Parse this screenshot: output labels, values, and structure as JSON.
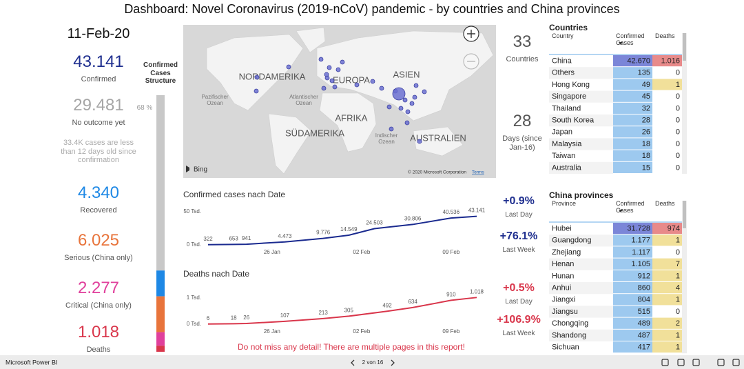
{
  "header": {
    "title": "Dashboard: Novel Coronavirus (2019-nCoV) pandemic - by countries and China provinces",
    "date": "11-Feb-20"
  },
  "kpis": [
    {
      "value": 43141,
      "value_label": "43.141",
      "label": "Confirmed",
      "color": "#1f2f8f"
    },
    {
      "value": 29481,
      "value_label": "29.481",
      "label": "No outcome yet",
      "color": "#a6a6a6"
    },
    {
      "value": 4340,
      "value_label": "4.340",
      "label": "Recovered",
      "color": "#1e88e5"
    },
    {
      "value": 6025,
      "value_label": "6.025",
      "label": "Serious (China only)",
      "color": "#e8743b"
    },
    {
      "value": 2277,
      "value_label": "2.277",
      "label": "Critical (China only)",
      "color": "#e0409c"
    },
    {
      "value": 1018,
      "value_label": "1.018",
      "label": "Deaths",
      "color": "#d9364b"
    }
  ],
  "note": "33.4K cases are less than 12 days old since confirmation",
  "structure": {
    "title": "Confirmed Cases Structure",
    "share_label": "68 %"
  },
  "map": {
    "regions": [
      "NORDAMERIKA",
      "EUROPA",
      "ASIEN",
      "AFRIKA",
      "SÜDAMERIKA",
      "AUSTRALIEN"
    ],
    "oceans": [
      "Pazifischer Ozean",
      "Atlantischer Ozean",
      "Indischer Ozean"
    ],
    "provider": "Bing",
    "copyright": "© 2020 Microsoft Corporation",
    "terms": "Terms"
  },
  "stats": {
    "countries": {
      "value": "33",
      "label": "Countries"
    },
    "days": {
      "value": "28",
      "label": "Days (since Jan-16)"
    },
    "confirmed_growth": [
      {
        "value": "+0.9%",
        "label": "Last Day"
      },
      {
        "value": "+76.1%",
        "label": "Last Week"
      }
    ],
    "deaths_growth": [
      {
        "value": "+0.5%",
        "label": "Last Day"
      },
      {
        "value": "+106.9%",
        "label": "Last Week"
      }
    ]
  },
  "charts": [
    {
      "type": "line",
      "title": "Confirmed cases nach Date",
      "color": "#1a2a8f",
      "x": [
        "21 Jan",
        "23 Jan",
        "24 Jan",
        "27 Jan",
        "30 Jan",
        "01 Feb",
        "03 Feb",
        "06 Feb",
        "09 Feb",
        "11 Feb"
      ],
      "values": [
        322,
        653,
        941,
        4473,
        9776,
        14549,
        24503,
        30806,
        40536,
        43141
      ],
      "value_labels": [
        "322",
        "653",
        "941",
        "4.473",
        "9.776",
        "14.549",
        "24.503",
        "30.806",
        "40.536",
        "43.141"
      ],
      "ylim": [
        0,
        50000
      ],
      "yticks": [
        {
          "value": 0,
          "label": "0 Tsd."
        },
        {
          "value": 50000,
          "label": "50 Tsd."
        }
      ],
      "xticks": [
        "26 Jan",
        "02 Feb",
        "09 Feb"
      ]
    },
    {
      "type": "line",
      "title": "Deaths nach Date",
      "color": "#d9364b",
      "x": [
        "21 Jan",
        "23 Jan",
        "24 Jan",
        "27 Jan",
        "30 Jan",
        "01 Feb",
        "04 Feb",
        "06 Feb",
        "09 Feb",
        "11 Feb"
      ],
      "values": [
        6,
        18,
        26,
        107,
        213,
        305,
        492,
        634,
        910,
        1018
      ],
      "value_labels": [
        "6",
        "18",
        "26",
        "107",
        "213",
        "305",
        "492",
        "634",
        "910",
        "1.018"
      ],
      "ylim": [
        0,
        1000
      ],
      "yticks": [
        {
          "value": 0,
          "label": "0 Tsd."
        },
        {
          "value": 1000,
          "label": "1 Tsd."
        }
      ],
      "xticks": [
        "26 Jan",
        "02 Feb",
        "09 Feb"
      ]
    }
  ],
  "countries": {
    "title": "Countries",
    "columns": [
      "Country",
      "Confirmed Cases",
      "Deaths"
    ],
    "rows": [
      [
        "China",
        "42.670",
        "1.016"
      ],
      [
        "Others",
        "135",
        "0"
      ],
      [
        "Hong Kong",
        "49",
        "1"
      ],
      [
        "Singapore",
        "45",
        "0"
      ],
      [
        "Thailand",
        "32",
        "0"
      ],
      [
        "South Korea",
        "28",
        "0"
      ],
      [
        "Japan",
        "26",
        "0"
      ],
      [
        "Malaysia",
        "18",
        "0"
      ],
      [
        "Taiwan",
        "18",
        "0"
      ],
      [
        "Australia",
        "15",
        "0"
      ]
    ]
  },
  "provinces": {
    "title": "China provinces",
    "columns": [
      "Province",
      "Confirmed Cases",
      "Deaths"
    ],
    "rows": [
      [
        "Hubei",
        "31.728",
        "974"
      ],
      [
        "Guangdong",
        "1.177",
        "1"
      ],
      [
        "Zhejiang",
        "1.117",
        "0"
      ],
      [
        "Henan",
        "1.105",
        "7"
      ],
      [
        "Hunan",
        "912",
        "1"
      ],
      [
        "Anhui",
        "860",
        "4"
      ],
      [
        "Jiangxi",
        "804",
        "1"
      ],
      [
        "Jiangsu",
        "515",
        "0"
      ],
      [
        "Chongqing",
        "489",
        "2"
      ],
      [
        "Shandong",
        "487",
        "1"
      ],
      [
        "Sichuan",
        "417",
        "1"
      ]
    ]
  },
  "footer": {
    "app": "Microsoft Power BI",
    "page": "2 von 16",
    "notice": "Do not miss any detail! There are multiple pages in this report!"
  }
}
